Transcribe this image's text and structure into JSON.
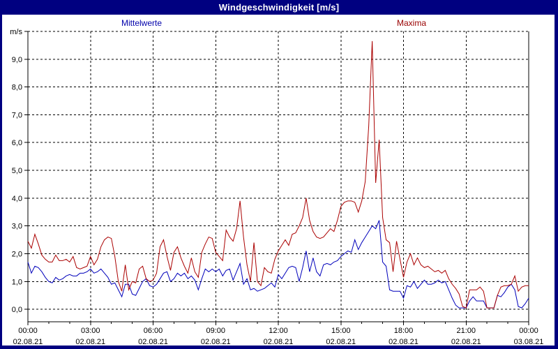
{
  "window": {
    "title": "Windgeschwindigkeit [m/s]",
    "titlebar_bg": "#000080",
    "titlebar_text_color": "#ffffff",
    "panel_bg": "#ffffff"
  },
  "legend": {
    "mean_label": "Mittelwerte",
    "mean_color": "#0000aa",
    "max_label": "Maxima",
    "max_color": "#990000"
  },
  "chart_data": {
    "type": "line",
    "title": "Windgeschwindigkeit [m/s]",
    "y_unit_label": "m/s",
    "y_tick_labels": [
      "0,0",
      "1,0",
      "2,0",
      "3,0",
      "4,0",
      "5,0",
      "6,0",
      "7,0",
      "8,0",
      "9,0"
    ],
    "ylim": [
      -0.45,
      10
    ],
    "grid": "dashed-black",
    "axis_color": "#000000",
    "tick_label_color": "#000000",
    "x_hours_range": [
      0,
      24
    ],
    "x_major_tick_every_hours": 3,
    "x_minor_tick_every_hours": 1,
    "x_tick_times": [
      "00:00",
      "03:00",
      "06:00",
      "09:00",
      "12:00",
      "15:00",
      "18:00",
      "21:00",
      "00:00"
    ],
    "x_tick_dates": [
      "02.08.21",
      "02.08.21",
      "02.08.21",
      "02.08.21",
      "02.08.21",
      "02.08.21",
      "02.08.21",
      "02.08.21",
      "03.08.21"
    ],
    "sample_interval_minutes": 10,
    "series": [
      {
        "name": "Mittelwerte",
        "color": "#0000bb",
        "values": [
          1.7,
          1.3,
          1.55,
          1.5,
          1.35,
          1.15,
          1.0,
          0.95,
          1.15,
          1.05,
          1.1,
          1.2,
          1.25,
          1.2,
          1.2,
          1.3,
          1.3,
          1.35,
          1.45,
          1.3,
          1.35,
          1.45,
          1.3,
          1.15,
          0.9,
          0.95,
          0.7,
          0.45,
          0.9,
          0.9,
          0.55,
          0.5,
          0.75,
          1.0,
          1.1,
          0.85,
          0.8,
          0.9,
          1.1,
          1.3,
          1.35,
          1.0,
          1.1,
          1.3,
          1.2,
          1.3,
          1.1,
          1.2,
          1.05,
          0.7,
          1.1,
          1.45,
          1.35,
          1.45,
          1.35,
          1.45,
          1.2,
          1.4,
          1.45,
          1.05,
          1.35,
          1.65,
          0.9,
          1.1,
          0.7,
          0.75,
          0.65,
          0.7,
          0.75,
          0.85,
          0.95,
          0.8,
          1.25,
          1.1,
          1.3,
          1.5,
          1.55,
          1.5,
          1.0,
          1.5,
          2.1,
          1.35,
          1.85,
          1.35,
          1.2,
          1.6,
          1.65,
          1.6,
          1.7,
          1.75,
          1.9,
          2.0,
          2.1,
          2.05,
          2.5,
          2.15,
          2.4,
          2.6,
          2.8,
          3.0,
          2.9,
          3.2,
          1.7,
          1.55,
          0.7,
          0.65,
          0.65,
          0.65,
          0.4,
          0.85,
          0.8,
          1.0,
          0.75,
          0.9,
          1.05,
          0.9,
          0.9,
          0.95,
          1.05,
          0.95,
          1.0,
          0.7,
          0.4,
          0.15,
          0.05,
          0.05,
          0.05,
          0.3,
          0.45,
          0.3,
          0.3,
          0.3,
          0.05,
          0.05,
          0.05,
          0.5,
          0.45,
          0.6,
          0.8,
          0.9,
          0.7,
          0.1,
          0.05,
          0.2,
          0.4
        ]
      },
      {
        "name": "Maxima",
        "color": "#aa0000",
        "values": [
          2.45,
          2.2,
          2.7,
          2.35,
          1.95,
          1.8,
          1.7,
          1.7,
          1.95,
          1.75,
          1.75,
          1.8,
          1.7,
          1.9,
          1.5,
          1.45,
          1.5,
          1.55,
          1.9,
          1.6,
          1.8,
          2.25,
          2.5,
          2.6,
          2.55,
          1.9,
          1.0,
          0.65,
          1.6,
          0.7,
          1.0,
          0.95,
          1.45,
          1.55,
          1.1,
          1.0,
          1.05,
          1.3,
          2.25,
          2.5,
          1.9,
          1.4,
          2.05,
          2.25,
          1.85,
          1.55,
          1.3,
          1.85,
          1.35,
          1.15,
          2.05,
          2.35,
          2.6,
          2.55,
          2.05,
          1.9,
          1.75,
          2.85,
          2.6,
          2.45,
          2.9,
          3.9,
          2.6,
          1.6,
          1.0,
          2.4,
          1.0,
          0.85,
          1.5,
          1.35,
          1.3,
          1.8,
          2.1,
          2.3,
          2.5,
          2.3,
          2.7,
          2.75,
          3.0,
          3.3,
          4.0,
          3.2,
          2.8,
          2.6,
          2.55,
          2.6,
          2.75,
          2.9,
          2.8,
          3.2,
          3.7,
          3.85,
          3.9,
          3.9,
          3.85,
          3.5,
          3.9,
          4.6,
          6.6,
          9.65,
          4.55,
          6.1,
          3.3,
          2.5,
          2.4,
          1.35,
          2.45,
          1.8,
          1.15,
          1.7,
          2.0,
          1.6,
          1.85,
          1.6,
          1.5,
          1.55,
          1.45,
          1.35,
          1.4,
          1.3,
          1.4,
          1.1,
          0.9,
          0.75,
          0.55,
          0.1,
          0.05,
          0.7,
          0.7,
          0.7,
          0.8,
          0.65,
          0.05,
          0.05,
          0.05,
          0.5,
          0.8,
          0.85,
          0.85,
          0.9,
          1.2,
          0.65,
          0.8,
          0.85,
          0.85
        ]
      }
    ]
  }
}
